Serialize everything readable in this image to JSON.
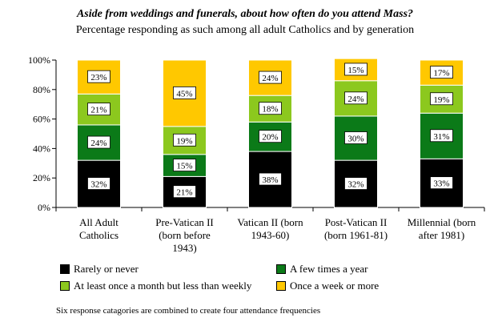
{
  "chart_data": {
    "type": "bar",
    "stacked": true,
    "title": "Aside from weddings and funerals, about how often do you attend Mass?",
    "subtitle": "Percentage responding as such among all adult Catholics and by generation",
    "categories": [
      [
        "All Adult",
        "Catholics"
      ],
      [
        "Pre-Vatican II",
        "(born before",
        "1943)"
      ],
      [
        "Vatican II (born",
        "1943-60)"
      ],
      [
        "Post-Vatican II",
        "(born 1961-81)"
      ],
      [
        "Millennial (born",
        "after 1981)"
      ]
    ],
    "series": [
      {
        "name": "Rarely or never",
        "color": "#000000",
        "values": [
          32,
          21,
          38,
          32,
          33
        ]
      },
      {
        "name": "A few times a year",
        "color": "#0b7a18",
        "values": [
          24,
          15,
          20,
          30,
          31
        ]
      },
      {
        "name": "At least once a month but less than weekly",
        "color": "#8cc81e",
        "values": [
          21,
          19,
          18,
          24,
          19
        ]
      },
      {
        "name": "Once a week or more",
        "color": "#ffc800",
        "values": [
          23,
          45,
          24,
          15,
          17
        ]
      }
    ],
    "data_labels": [
      [
        "32%",
        "21%",
        "38%",
        "32%",
        "33%"
      ],
      [
        "24%",
        "15%",
        "20%",
        "30%",
        "31%"
      ],
      [
        "21%",
        "19%",
        "18%",
        "24%",
        "19%"
      ],
      [
        "23%",
        "45%",
        "24%",
        "15%",
        "17%"
      ]
    ],
    "yticks": [
      "0%",
      "20%",
      "40%",
      "60%",
      "80%",
      "100%"
    ],
    "ylim": [
      0,
      100
    ],
    "grid": false,
    "legend_position": "bottom"
  },
  "note": "Six response catagories are combined to create four attendance frequencies"
}
